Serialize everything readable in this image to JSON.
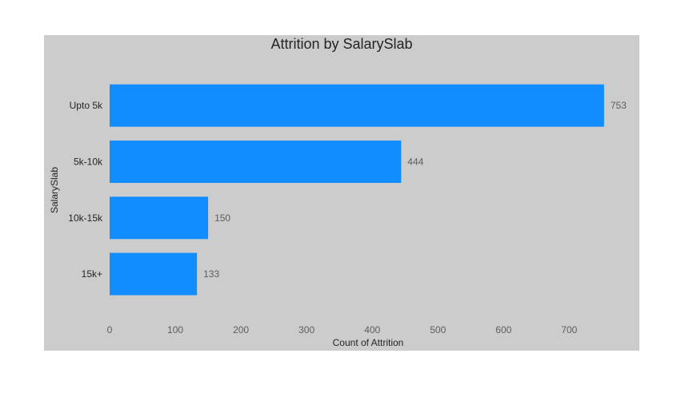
{
  "chart_data": {
    "type": "bar",
    "orientation": "horizontal",
    "title": "Attrition by SalarySlab",
    "xlabel": "Count of Attrition",
    "ylabel": "SalarySlab",
    "categories": [
      "Upto 5k",
      "5k-10k",
      "10k-15k",
      "15k+"
    ],
    "values": [
      753,
      444,
      150,
      133
    ],
    "xlim": [
      0,
      780
    ],
    "xticks": [
      0,
      100,
      200,
      300,
      400,
      500,
      600,
      700
    ],
    "grid": false,
    "legend": "none",
    "bar_color": "#118dff",
    "background_color": "#cccccc"
  }
}
